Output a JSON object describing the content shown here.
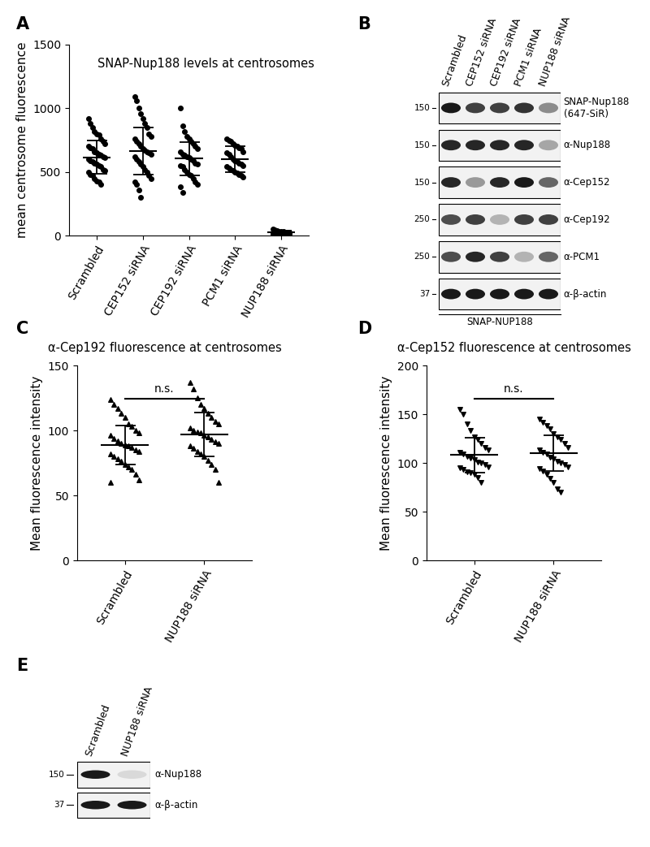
{
  "chart_data": [
    {
      "type": "strip",
      "panel": "A",
      "title": "SNAP-Nup188 levels at centrosomes",
      "y_label": "mean centrosome fluorescence",
      "marker": "circle",
      "categories": [
        "Scrambled",
        "CEP152 siRNA",
        "CEP192 siRNA",
        "PCM1 siRNA",
        "NUP188 siRNA"
      ],
      "values": [
        [
          920,
          880,
          850,
          820,
          800,
          790,
          760,
          740,
          720,
          700,
          690,
          680,
          660,
          650,
          640,
          630,
          620,
          610,
          600,
          590,
          580,
          570,
          560,
          550,
          540,
          520,
          510,
          500,
          480,
          470,
          450,
          430,
          420,
          400
        ],
        [
          1090,
          1060,
          1000,
          960,
          920,
          880,
          850,
          800,
          780,
          760,
          740,
          720,
          700,
          680,
          670,
          660,
          650,
          640,
          620,
          600,
          580,
          560,
          540,
          520,
          500,
          470,
          450,
          420,
          400,
          360,
          300
        ],
        [
          1000,
          860,
          820,
          780,
          760,
          740,
          720,
          700,
          680,
          660,
          640,
          630,
          620,
          610,
          600,
          590,
          570,
          560,
          550,
          540,
          520,
          500,
          480,
          470,
          450,
          420,
          400,
          380,
          340
        ],
        [
          760,
          750,
          740,
          720,
          710,
          700,
          690,
          680,
          660,
          650,
          640,
          620,
          600,
          590,
          580,
          570,
          560,
          550,
          540,
          530,
          520,
          510,
          500,
          490,
          480,
          470,
          460
        ],
        [
          50,
          45,
          40,
          35,
          30,
          30,
          28,
          25,
          25,
          22,
          20,
          20,
          18,
          15,
          15,
          12,
          10,
          10,
          8,
          5
        ]
      ],
      "means": [
        615,
        665,
        605,
        600,
        25
      ],
      "sd": [
        130,
        185,
        130,
        100,
        15
      ],
      "ylim": [
        0,
        1500
      ],
      "yticks": [
        0,
        500,
        1000,
        1500
      ]
    },
    {
      "type": "blot",
      "panel": "B",
      "lanes": [
        "Scrambled",
        "CEP152 siRNA",
        "CEP192 siRNA",
        "PCM1 siRNA",
        "NUP188 siRNA"
      ],
      "rows": [
        {
          "label": "SNAP-Nup188\n(647-SiR)",
          "mw": 150,
          "bands": [
            0.9,
            0.75,
            0.75,
            0.8,
            0.45
          ]
        },
        {
          "label": "α-Nup188",
          "mw": 150,
          "bands": [
            0.85,
            0.85,
            0.85,
            0.85,
            0.35
          ]
        },
        {
          "label": "α-Cep152",
          "mw": 150,
          "bands": [
            0.85,
            0.4,
            0.85,
            0.9,
            0.6
          ]
        },
        {
          "label": "α-Cep192",
          "mw": 250,
          "bands": [
            0.7,
            0.75,
            0.3,
            0.75,
            0.75
          ]
        },
        {
          "label": "α-PCM1",
          "mw": 250,
          "bands": [
            0.7,
            0.85,
            0.75,
            0.3,
            0.6
          ]
        },
        {
          "label": "α-β-actin",
          "mw": 37,
          "bands": [
            0.9,
            0.9,
            0.9,
            0.9,
            0.9
          ]
        }
      ],
      "footer": "SNAP-NUP188"
    },
    {
      "type": "strip",
      "panel": "C",
      "title": "α-Cep192 fluorescence at centrosomes",
      "y_label": "Mean fluorescence intensity",
      "marker": "triangle_up",
      "annotation": "n.s.",
      "categories": [
        "Scrambled",
        "NUP188 siRNA"
      ],
      "values": [
        [
          124,
          120,
          117,
          113,
          110,
          105,
          103,
          100,
          98,
          96,
          94,
          92,
          90,
          89,
          88,
          87,
          85,
          84,
          82,
          80,
          78,
          76,
          74,
          72,
          70,
          66,
          62,
          60
        ],
        [
          137,
          132,
          125,
          120,
          117,
          113,
          110,
          107,
          105,
          102,
          100,
          99,
          98,
          96,
          95,
          93,
          91,
          90,
          88,
          86,
          84,
          82,
          80,
          77,
          74,
          70,
          60
        ]
      ],
      "means": [
        89,
        97
      ],
      "sd": [
        15,
        17
      ],
      "ylim": [
        0,
        150
      ],
      "yticks": [
        0,
        50,
        100,
        150
      ]
    },
    {
      "type": "strip",
      "panel": "D",
      "title": "α-Cep152 fluorescence at centrosomes",
      "y_label": "Mean fluorescence intensity",
      "marker": "triangle_down",
      "annotation": "n.s.",
      "categories": [
        "Scrambled",
        "NUP188 siRNA"
      ],
      "values": [
        [
          155,
          150,
          140,
          133,
          127,
          124,
          120,
          116,
          113,
          111,
          109,
          107,
          105,
          103,
          101,
          100,
          98,
          96,
          95,
          93,
          91,
          90,
          88,
          85,
          80
        ],
        [
          145,
          142,
          138,
          135,
          130,
          127,
          124,
          120,
          116,
          113,
          111,
          109,
          106,
          104,
          102,
          100,
          98,
          96,
          94,
          92,
          88,
          84,
          80,
          73,
          70
        ]
      ],
      "means": [
        108,
        110
      ],
      "sd": [
        18,
        18
      ],
      "ylim": [
        0,
        200
      ],
      "yticks": [
        0,
        50,
        100,
        150,
        200
      ]
    },
    {
      "type": "blot",
      "panel": "E",
      "lanes": [
        "Scrambled",
        "NUP188 siRNA"
      ],
      "rows": [
        {
          "label": "α-Nup188",
          "mw": 150,
          "bands": [
            0.9,
            0.15
          ]
        },
        {
          "label": "α-β-actin",
          "mw": 37,
          "bands": [
            0.9,
            0.9
          ]
        }
      ]
    }
  ]
}
